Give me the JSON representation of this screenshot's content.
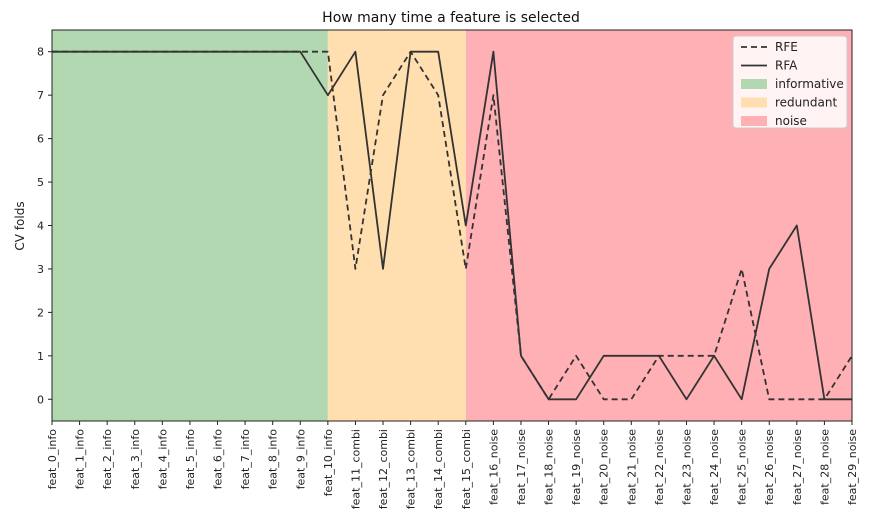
{
  "chart_data": {
    "type": "line",
    "title": "How many time a feature is selected",
    "xlabel": "",
    "ylabel": "CV folds",
    "ylim": [
      -0.5,
      8.5
    ],
    "yticks": [
      0,
      1,
      2,
      3,
      4,
      5,
      6,
      7,
      8
    ],
    "categories": [
      "feat_0_info",
      "feat_1_info",
      "feat_2_info",
      "feat_3_info",
      "feat_4_info",
      "feat_5_info",
      "feat_6_info",
      "feat_7_info",
      "feat_8_info",
      "feat_9_info",
      "feat_10_info",
      "feat_11_combi",
      "feat_12_combi",
      "feat_13_combi",
      "feat_14_combi",
      "feat_15_combi",
      "feat_16_noise",
      "feat_17_noise",
      "feat_18_noise",
      "feat_19_noise",
      "feat_20_noise",
      "feat_21_noise",
      "feat_22_noise",
      "feat_23_noise",
      "feat_24_noise",
      "feat_25_noise",
      "feat_26_noise",
      "feat_27_noise",
      "feat_28_noise",
      "feat_29_noise"
    ],
    "series": [
      {
        "name": "RFE",
        "style": "dashed",
        "color": "#333333",
        "values": [
          8,
          8,
          8,
          8,
          8,
          8,
          8,
          8,
          8,
          8,
          8,
          3,
          7,
          8,
          7,
          3,
          7,
          1,
          0,
          1,
          0,
          0,
          1,
          1,
          1,
          3,
          0,
          0,
          0,
          1
        ]
      },
      {
        "name": "RFA",
        "style": "solid",
        "color": "#333333",
        "values": [
          8,
          8,
          8,
          8,
          8,
          8,
          8,
          8,
          8,
          8,
          7,
          8,
          3,
          8,
          8,
          4,
          8,
          1,
          0,
          0,
          1,
          1,
          1,
          0,
          1,
          0,
          3,
          4,
          0,
          0
        ]
      }
    ],
    "regions": [
      {
        "name": "informative",
        "from": 0,
        "to": 10,
        "color": "#b2d8b2"
      },
      {
        "name": "redundant",
        "from": 10,
        "to": 15,
        "color": "#ffdfb0"
      },
      {
        "name": "noise",
        "from": 15,
        "to": 29,
        "color": "#ffb0b5"
      }
    ],
    "legend": "top-right",
    "grid": false
  }
}
